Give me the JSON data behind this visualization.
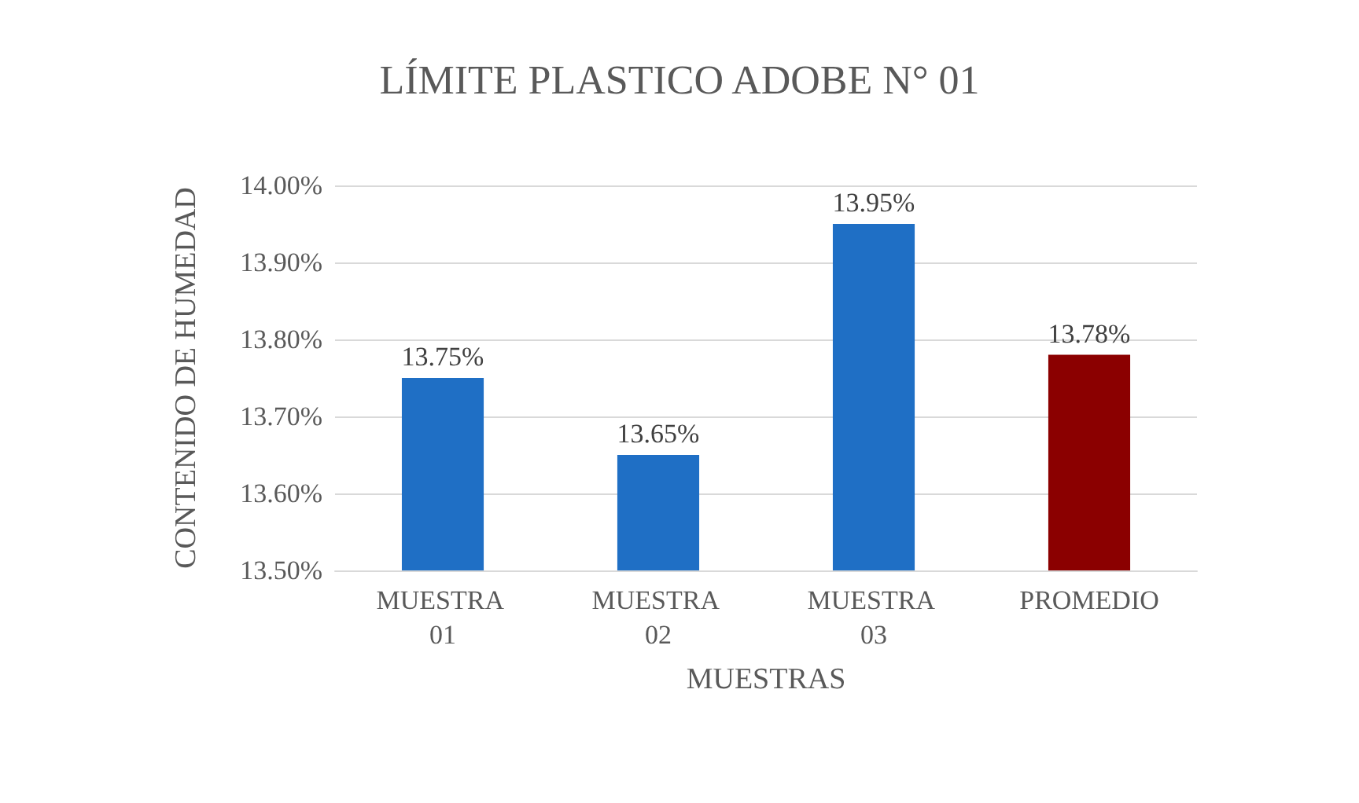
{
  "chart_data": {
    "type": "bar",
    "title": "LÍMITE PLASTICO ADOBE N° 01",
    "xlabel": "MUESTRAS",
    "ylabel": "CONTENIDO DE HUMEDAD",
    "categories": [
      "MUESTRA 01",
      "MUESTRA 02",
      "MUESTRA 03",
      "PROMEDIO"
    ],
    "values": [
      13.75,
      13.65,
      13.95,
      13.78
    ],
    "colors": [
      "#1f6fc5",
      "#1f6fc5",
      "#1f6fc5",
      "#8b0000"
    ],
    "value_labels": [
      "13.75%",
      "13.65%",
      "13.95%",
      "13.78%"
    ],
    "ylim": [
      13.5,
      14.0
    ],
    "yticks": [
      {
        "value": 13.5,
        "label": "13.50%"
      },
      {
        "value": 13.6,
        "label": "13.60%"
      },
      {
        "value": 13.7,
        "label": "13.70%"
      },
      {
        "value": 13.8,
        "label": "13.80%"
      },
      {
        "value": 13.9,
        "label": "13.90%"
      },
      {
        "value": 14.0,
        "label": "14.00%"
      }
    ],
    "grid": "y"
  }
}
